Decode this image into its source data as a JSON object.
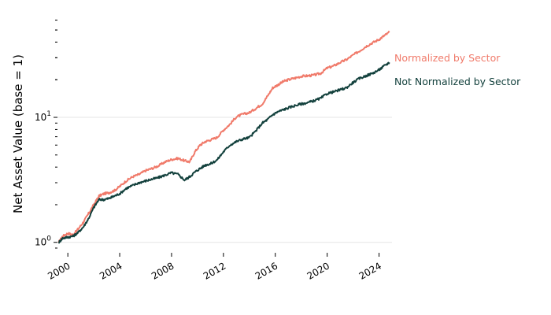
{
  "chart_data": {
    "type": "line",
    "title": "",
    "xlabel": "",
    "ylabel": "Net Asset Value (base = 1)",
    "yscale": "log",
    "ylim": [
      0.9,
      65
    ],
    "xlim": [
      1999.2,
      2025.0
    ],
    "grid": "horizontal at major ticks",
    "legend": "inline labels at right end of lines",
    "x_ticks": [
      2000,
      2004,
      2008,
      2012,
      2016,
      2020,
      2024
    ],
    "x_tick_labels": [
      "2000",
      "2004",
      "2008",
      "2012",
      "2016",
      "2020",
      "2024"
    ],
    "y_major_ticks": [
      1,
      10
    ],
    "y_major_tick_labels": [
      "1",
      "1"
    ],
    "y_major_tick_exponents": [
      "0",
      "1"
    ],
    "series": [
      {
        "name": "Normalized by Sector",
        "color": "#f07a6a",
        "x": [
          1999.3,
          1999.6,
          2000.0,
          2000.4,
          2000.8,
          2001.2,
          2001.6,
          2002.0,
          2002.4,
          2002.8,
          2003.2,
          2003.6,
          2004.0,
          2004.5,
          2005.0,
          2005.5,
          2006.0,
          2006.5,
          2007.0,
          2007.5,
          2008.0,
          2008.5,
          2009.0,
          2009.4,
          2009.8,
          2010.2,
          2010.6,
          2011.0,
          2011.5,
          2012.0,
          2012.5,
          2013.0,
          2013.5,
          2014.0,
          2014.5,
          2015.0,
          2015.4,
          2015.8,
          2016.2,
          2016.6,
          2017.0,
          2017.5,
          2018.0,
          2018.5,
          2019.0,
          2019.5,
          2020.0,
          2020.5,
          2021.0,
          2021.5,
          2022.0,
          2022.5,
          2023.0,
          2023.5,
          2024.0,
          2024.4,
          2024.8
        ],
        "y": [
          1.0,
          1.12,
          1.18,
          1.15,
          1.28,
          1.45,
          1.7,
          2.0,
          2.35,
          2.45,
          2.5,
          2.6,
          2.8,
          3.1,
          3.35,
          3.5,
          3.75,
          3.9,
          4.1,
          4.4,
          4.6,
          4.7,
          4.5,
          4.4,
          5.3,
          6.0,
          6.4,
          6.6,
          6.9,
          7.9,
          8.8,
          10.1,
          10.6,
          10.9,
          11.8,
          12.8,
          14.8,
          17.2,
          18.2,
          19.3,
          20.0,
          20.6,
          21.3,
          21.5,
          21.8,
          22.5,
          24.8,
          25.8,
          27.5,
          29.0,
          31.5,
          34.0,
          37.0,
          39.5,
          42.0,
          45.0,
          48.0
        ]
      },
      {
        "name": "Not Normalized by Sector",
        "color": "#12403c",
        "x": [
          1999.3,
          1999.6,
          2000.0,
          2000.4,
          2000.8,
          2001.2,
          2001.6,
          2002.0,
          2002.4,
          2002.8,
          2003.2,
          2003.6,
          2004.0,
          2004.5,
          2005.0,
          2005.5,
          2006.0,
          2006.5,
          2007.0,
          2007.5,
          2008.0,
          2008.5,
          2009.0,
          2009.4,
          2009.8,
          2010.2,
          2010.6,
          2011.0,
          2011.5,
          2012.0,
          2012.5,
          2013.0,
          2013.5,
          2014.0,
          2014.5,
          2015.0,
          2015.4,
          2015.8,
          2016.2,
          2016.6,
          2017.0,
          2017.5,
          2018.0,
          2018.5,
          2019.0,
          2019.5,
          2020.0,
          2020.5,
          2021.0,
          2021.5,
          2022.0,
          2022.5,
          2023.0,
          2023.5,
          2024.0,
          2024.4,
          2024.8
        ],
        "y": [
          1.0,
          1.08,
          1.1,
          1.12,
          1.2,
          1.33,
          1.55,
          1.9,
          2.2,
          2.2,
          2.25,
          2.35,
          2.45,
          2.7,
          2.85,
          3.0,
          3.1,
          3.2,
          3.3,
          3.45,
          3.6,
          3.5,
          3.15,
          3.35,
          3.65,
          3.9,
          4.15,
          4.25,
          4.55,
          5.3,
          6.0,
          6.4,
          6.7,
          6.9,
          7.8,
          9.0,
          9.6,
          10.5,
          11.1,
          11.5,
          11.9,
          12.4,
          12.8,
          13.1,
          13.6,
          14.2,
          15.5,
          16.0,
          16.6,
          17.3,
          19.0,
          20.5,
          21.5,
          22.5,
          24.0,
          25.8,
          27.5
        ]
      }
    ]
  }
}
